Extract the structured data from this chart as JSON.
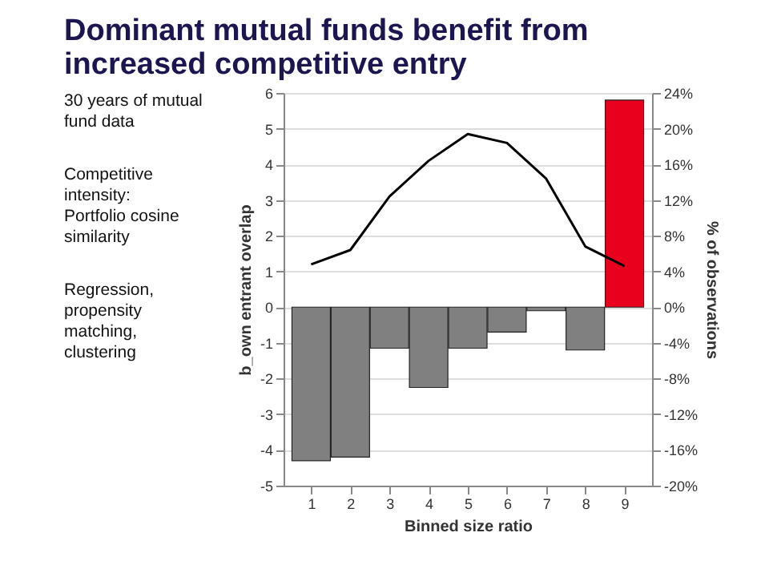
{
  "chart_data": {
    "type": "bar",
    "title": "Dominant mutual funds benefit from increased competitive entry",
    "annotations": [
      "30 years of mutual fund data",
      "Competitive intensity: Portfolio cosine similarity",
      "Regression, propensity matching, clustering"
    ],
    "xlabel": "Binned size ratio",
    "ylabel": "b_own entrant overlap",
    "y2label": "% of observations",
    "categories": [
      "1",
      "2",
      "3",
      "4",
      "5",
      "6",
      "7",
      "8",
      "9"
    ],
    "series": [
      {
        "colors": [
          "#808080",
          "#808080",
          "#808080",
          "#808080",
          "#808080",
          "#808080",
          "#808080",
          "#808080",
          "#e8001c"
        ],
        "values": [
          -4.3,
          -4.2,
          -1.15,
          -2.25,
          -1.15,
          -0.7,
          -0.1,
          -1.2,
          5.8
        ]
      },
      {
        "type": "line",
        "axis": "y2",
        "color": "#000000",
        "values": [
          4.8,
          6.4,
          12.4,
          16.4,
          19.4,
          18.4,
          14.4,
          6.8,
          4.6
        ]
      }
    ],
    "ylim": [
      -5,
      6
    ],
    "yticks": [
      -5,
      -4,
      -3,
      -2,
      -1,
      0,
      1,
      2,
      3,
      4,
      5,
      6
    ],
    "y2lim": [
      -20,
      24
    ],
    "y2ticks": [
      {
        "value": -20,
        "label": "-20%"
      },
      {
        "value": -16,
        "label": "-16%"
      },
      {
        "value": -12,
        "label": "-12%"
      },
      {
        "value": -8,
        "label": "-8%"
      },
      {
        "value": -4,
        "label": "-4%"
      },
      {
        "value": 0,
        "label": "0%"
      },
      {
        "value": 4,
        "label": "4%"
      },
      {
        "value": 8,
        "label": "8%"
      },
      {
        "value": 12,
        "label": "12%"
      },
      {
        "value": 16,
        "label": "16%"
      },
      {
        "value": 20,
        "label": "20%"
      },
      {
        "value": 24,
        "label": "24%"
      }
    ],
    "grid": "y",
    "marker": "none",
    "line_style": "solid"
  }
}
